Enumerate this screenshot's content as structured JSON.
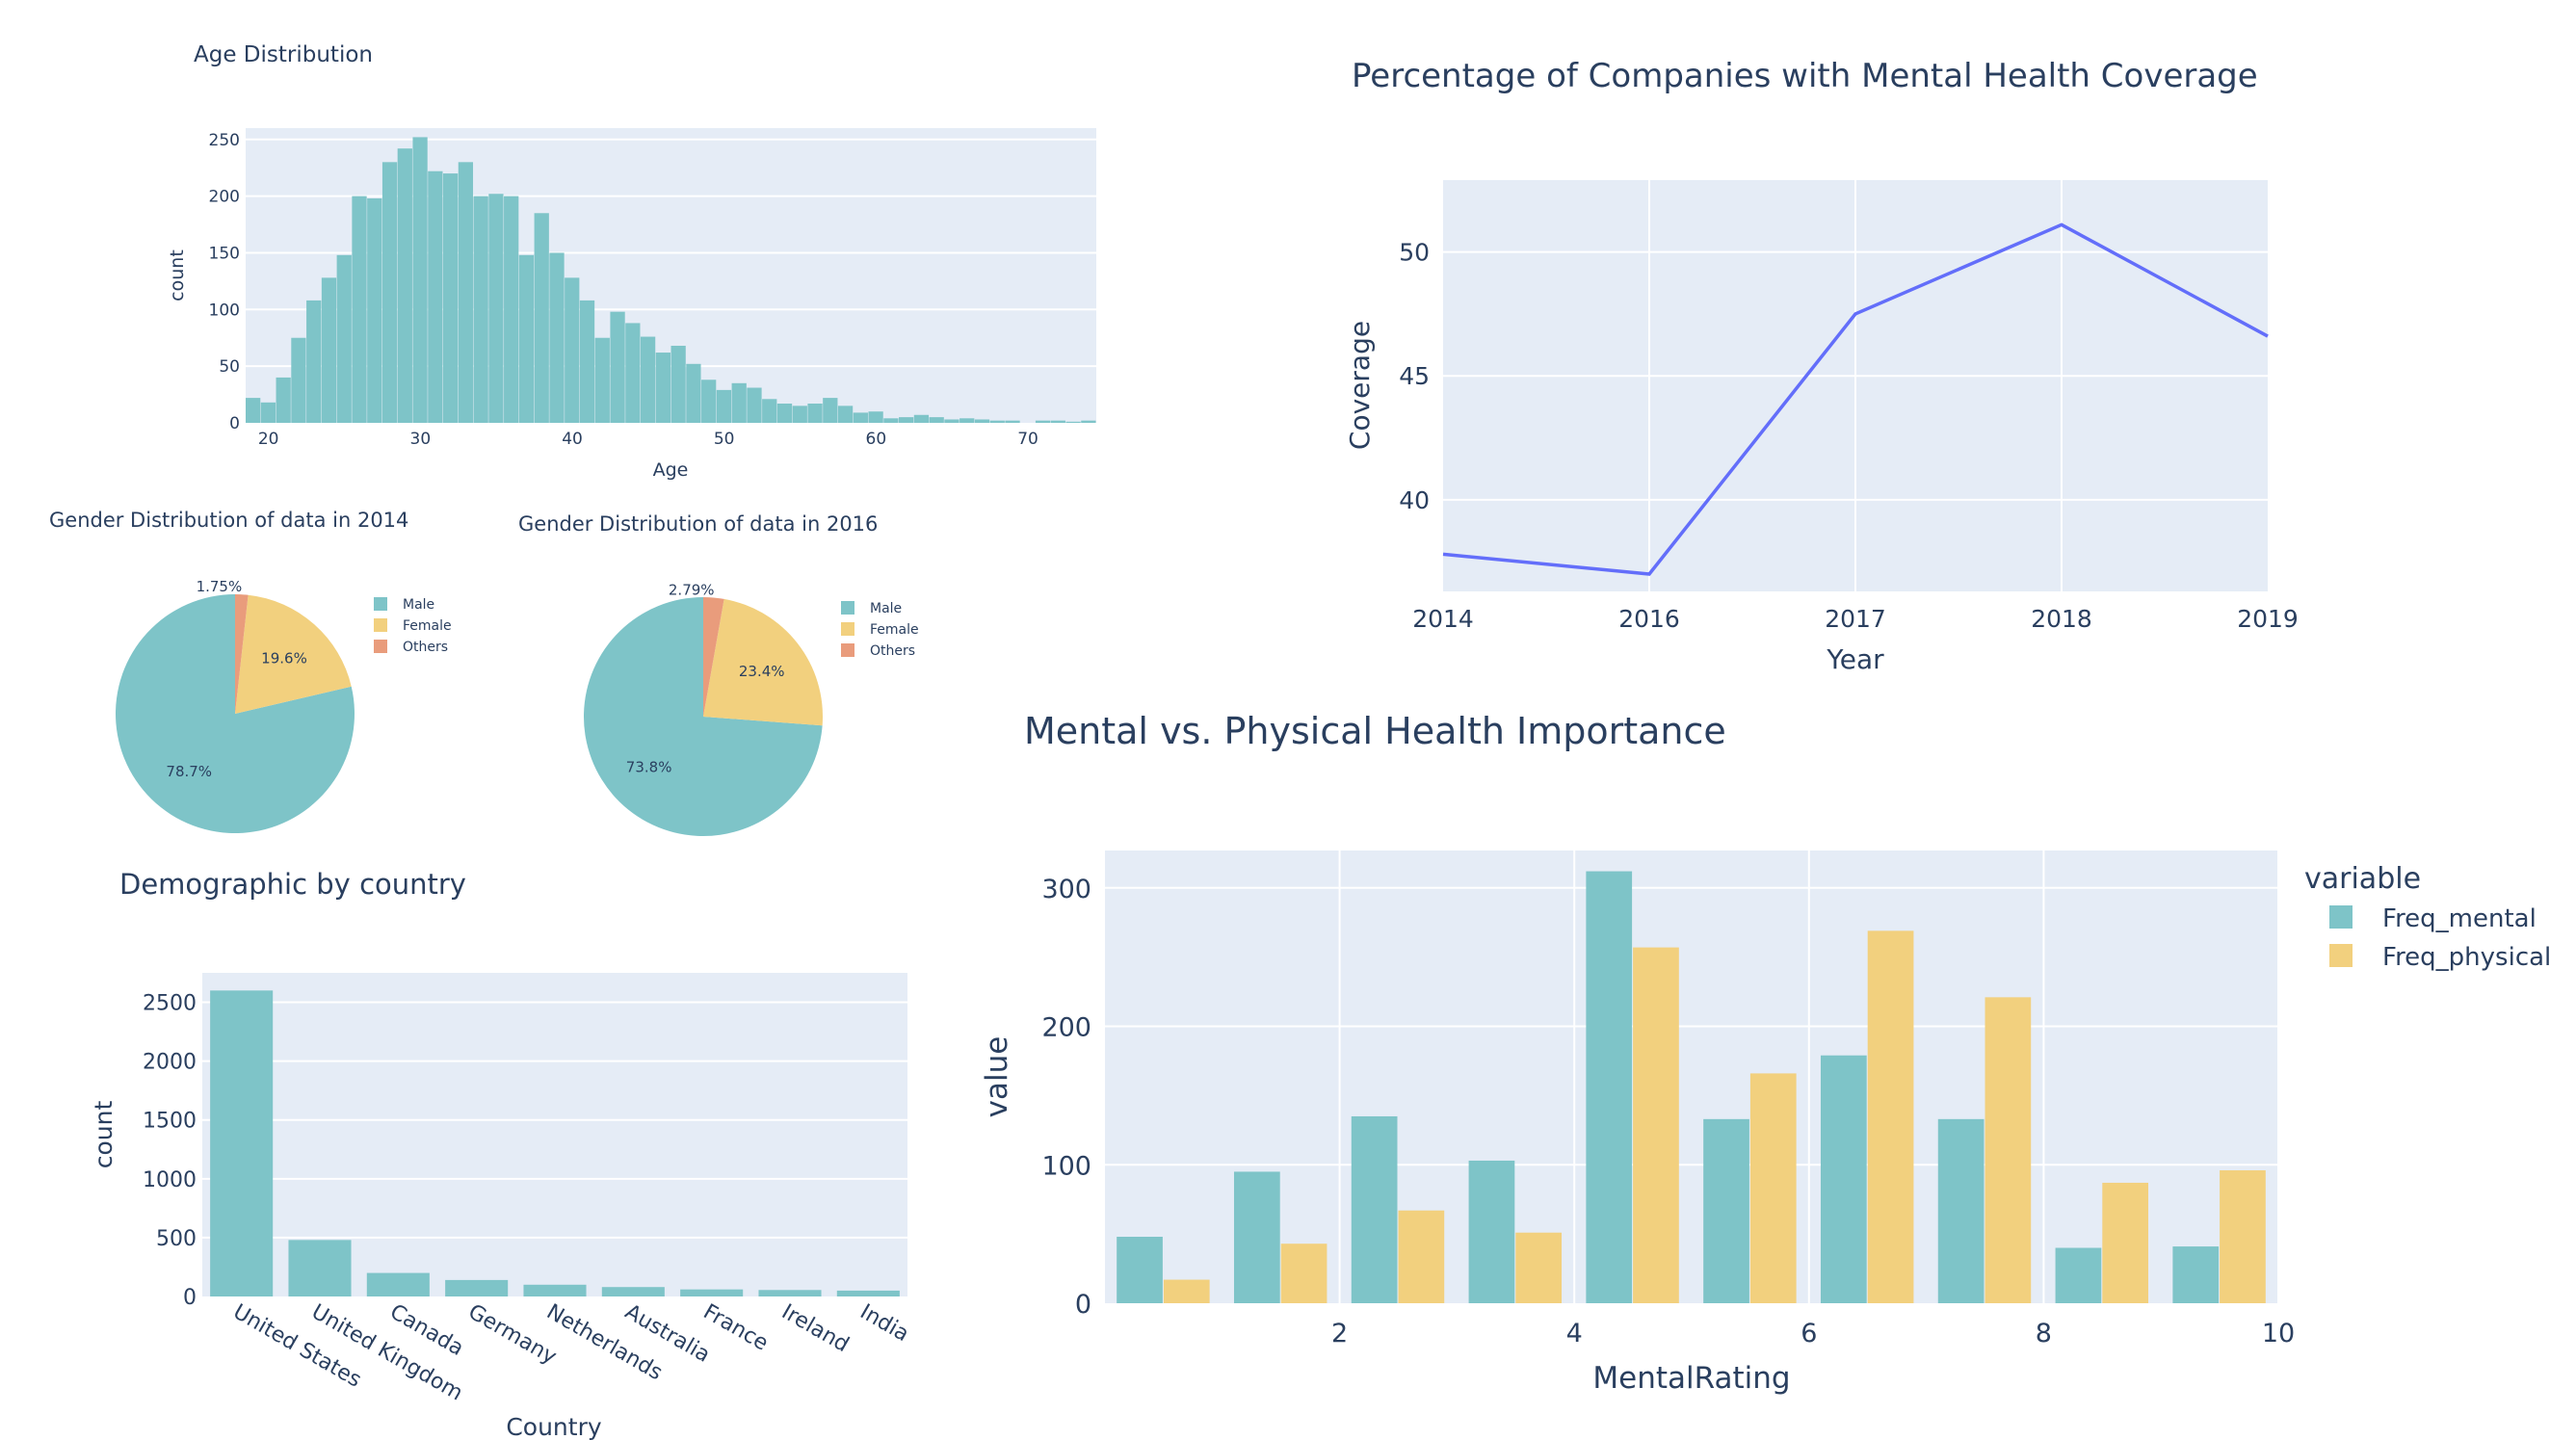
{
  "colors": {
    "teal": "#7ec4c8",
    "yellow": "#f2d07e",
    "salmon": "#e99c7c",
    "line": "#636efa",
    "plot_bg": "#e5ecf6",
    "text": "#2a3f5f"
  },
  "chart_data": [
    {
      "id": "age",
      "type": "bar",
      "title": "Age Distribution",
      "xlabel": "Age",
      "ylabel": "count",
      "xlim": [
        18.5,
        74.5
      ],
      "ylim": [
        0,
        260
      ],
      "x_ticks": [
        20,
        30,
        40,
        50,
        60,
        70
      ],
      "y_ticks": [
        0,
        50,
        100,
        150,
        200,
        250
      ],
      "bin_start": 18.5,
      "bin_width": 1,
      "values": [
        22,
        18,
        40,
        75,
        108,
        128,
        148,
        200,
        198,
        230,
        242,
        252,
        222,
        220,
        230,
        200,
        202,
        200,
        148,
        185,
        150,
        128,
        108,
        75,
        98,
        88,
        76,
        62,
        68,
        52,
        38,
        29,
        35,
        31,
        21,
        17,
        15,
        17,
        22,
        15,
        9,
        10,
        4,
        5,
        7,
        5,
        3,
        4,
        3,
        2,
        2,
        0,
        2,
        2,
        1,
        2
      ]
    },
    {
      "id": "coverage",
      "type": "line",
      "title": "Percentage of Companies with Mental Health Coverage",
      "xlabel": "Year",
      "ylabel": "Coverage",
      "categories": [
        "2014",
        "2016",
        "2017",
        "2018",
        "2019"
      ],
      "values": [
        37.8,
        37.0,
        47.5,
        51.1,
        46.6
      ],
      "ylim": [
        36.3,
        52.9
      ],
      "y_ticks": [
        40,
        45,
        50
      ]
    },
    {
      "id": "gender2014",
      "type": "pie",
      "title": "Gender Distribution of data in 2014",
      "labels": [
        "Male",
        "Female",
        "Others"
      ],
      "values": [
        78.7,
        19.6,
        1.75
      ],
      "display": [
        "78.7%",
        "19.6%",
        "1.75%"
      ]
    },
    {
      "id": "gender2016",
      "type": "pie",
      "title": "Gender Distribution of data in 2016",
      "labels": [
        "Male",
        "Female",
        "Others"
      ],
      "values": [
        73.8,
        23.4,
        2.79
      ],
      "display": [
        "73.8%",
        "23.4%",
        "2.79%"
      ]
    },
    {
      "id": "country",
      "type": "bar",
      "title": "Demographic by country",
      "xlabel": "Country",
      "ylabel": "count",
      "categories": [
        "United States",
        "United Kingdom",
        "Canada",
        "Germany",
        "Netherlands",
        "Australia",
        "France",
        "Ireland",
        "India"
      ],
      "values": [
        2600,
        480,
        200,
        140,
        100,
        80,
        60,
        55,
        50
      ],
      "ylim": [
        0,
        2750
      ],
      "y_ticks": [
        0,
        500,
        1000,
        1500,
        2000,
        2500
      ]
    },
    {
      "id": "importance",
      "type": "bar",
      "title": "Mental vs. Physical Health Importance",
      "xlabel": "MentalRating",
      "ylabel": "value",
      "legend_title": "variable",
      "categories": [
        1,
        2,
        3,
        4,
        5,
        6,
        7,
        8,
        9,
        10
      ],
      "x_ticks": [
        2,
        4,
        6,
        8,
        10
      ],
      "series": [
        {
          "name": "Freq_mental",
          "values": [
            48,
            95,
            135,
            103,
            312,
            133,
            179,
            133,
            40,
            41
          ]
        },
        {
          "name": "Freq_physical",
          "values": [
            17,
            43,
            67,
            51,
            257,
            166,
            269,
            221,
            87,
            96
          ]
        }
      ],
      "ylim": [
        0,
        327
      ],
      "y_ticks": [
        0,
        100,
        200,
        300
      ]
    }
  ]
}
